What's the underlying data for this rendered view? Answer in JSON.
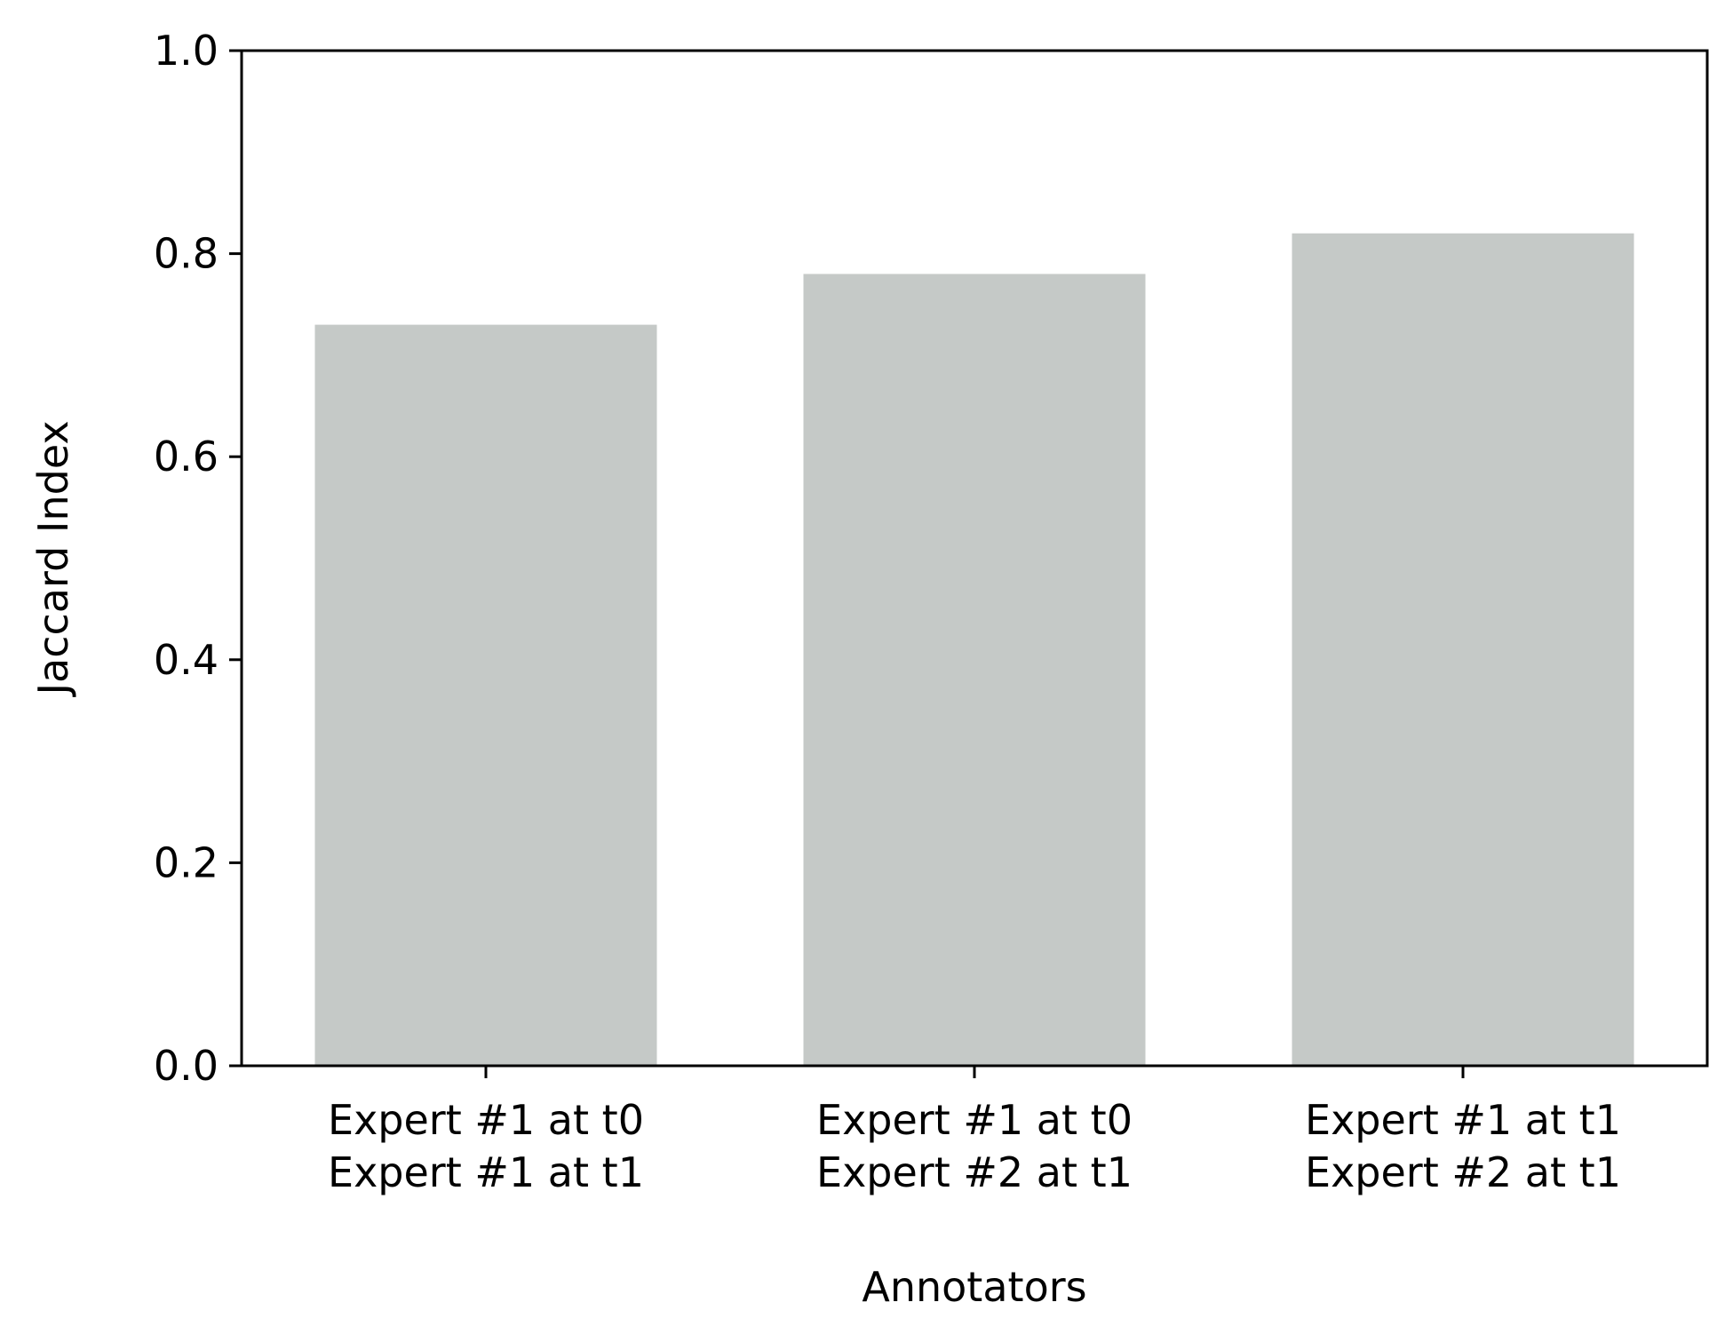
{
  "chart_data": {
    "type": "bar",
    "categories": [
      [
        "Expert #1 at t0",
        "Expert #1 at t1"
      ],
      [
        "Expert #1 at t0",
        "Expert #2 at t1"
      ],
      [
        "Expert #1 at t1",
        "Expert #2 at t1"
      ]
    ],
    "values": [
      0.73,
      0.78,
      0.82
    ],
    "xlabel": "Annotators",
    "ylabel": "Jaccard Index",
    "ylim": [
      0,
      1.0
    ],
    "yticks": [
      "0.0",
      "0.2",
      "0.4",
      "0.6",
      "0.8",
      "1.0"
    ],
    "grid": false,
    "legend": "none",
    "bar_color": "#c5c9c7"
  }
}
